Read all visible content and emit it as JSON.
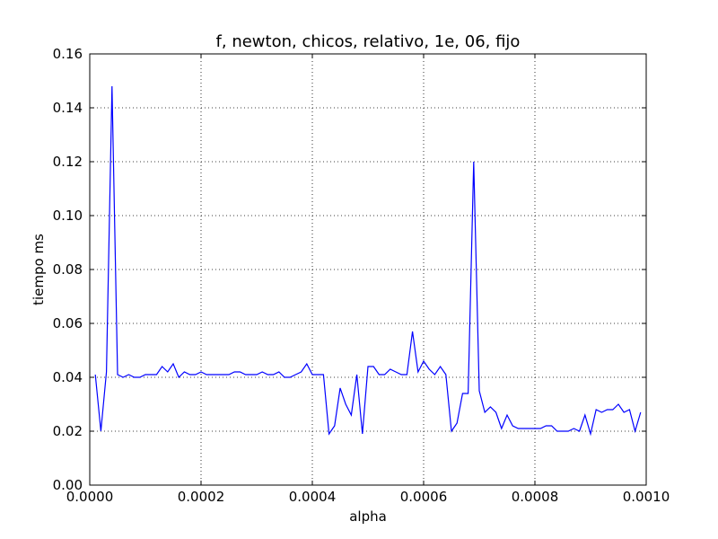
{
  "chart_data": {
    "type": "line",
    "title": "f, newton, chicos, relativo, 1e, 06, fijo",
    "xlabel": "alpha",
    "ylabel": "tiempo ms",
    "xlim": [
      0.0,
      0.001
    ],
    "ylim": [
      0.0,
      0.16
    ],
    "xticks": [
      "0.0000",
      "0.0002",
      "0.0004",
      "0.0006",
      "0.0008",
      "0.0010"
    ],
    "yticks": [
      "0.00",
      "0.02",
      "0.04",
      "0.06",
      "0.08",
      "0.10",
      "0.12",
      "0.14",
      "0.16"
    ],
    "grid": true,
    "line_color": "#0000ff",
    "series": [
      {
        "x": [
          1e-05,
          2e-05,
          3e-05,
          4e-05,
          5e-05,
          6e-05,
          7e-05,
          8e-05,
          9e-05,
          0.0001,
          0.00011,
          0.00012,
          0.00013,
          0.00014,
          0.00015,
          0.00016,
          0.00017,
          0.00018,
          0.00019,
          0.0002,
          0.00021,
          0.00022,
          0.00023,
          0.00024,
          0.00025,
          0.00026,
          0.00027,
          0.00028,
          0.00029,
          0.0003,
          0.00031,
          0.00032,
          0.00033,
          0.00034,
          0.00035,
          0.00036,
          0.00037,
          0.00038,
          0.00039,
          0.0004,
          0.00041,
          0.00042,
          0.00043,
          0.00044,
          0.00045,
          0.00046,
          0.00047,
          0.00048,
          0.00049,
          0.0005,
          0.00051,
          0.00052,
          0.00053,
          0.00054,
          0.00055,
          0.00056,
          0.00057,
          0.00058,
          0.00059,
          0.0006,
          0.00061,
          0.00062,
          0.00063,
          0.00064,
          0.00065,
          0.00066,
          0.00067,
          0.00068,
          0.00069,
          0.0007,
          0.00071,
          0.00072,
          0.00073,
          0.00074,
          0.00075,
          0.00076,
          0.00077,
          0.00078,
          0.00079,
          0.0008,
          0.00081,
          0.00082,
          0.00083,
          0.00084,
          0.00085,
          0.00086,
          0.00087,
          0.00088,
          0.00089,
          0.0009,
          0.00091,
          0.00092,
          0.00093,
          0.00094,
          0.00095,
          0.00096,
          0.00097,
          0.00098,
          0.00099
        ],
        "y": [
          0.041,
          0.02,
          0.042,
          0.148,
          0.041,
          0.04,
          0.041,
          0.04,
          0.04,
          0.041,
          0.041,
          0.041,
          0.044,
          0.042,
          0.045,
          0.04,
          0.042,
          0.041,
          0.041,
          0.042,
          0.041,
          0.041,
          0.041,
          0.041,
          0.041,
          0.042,
          0.042,
          0.041,
          0.041,
          0.041,
          0.042,
          0.041,
          0.041,
          0.042,
          0.04,
          0.04,
          0.041,
          0.042,
          0.045,
          0.041,
          0.041,
          0.041,
          0.019,
          0.022,
          0.036,
          0.03,
          0.026,
          0.041,
          0.019,
          0.044,
          0.044,
          0.041,
          0.041,
          0.043,
          0.042,
          0.041,
          0.041,
          0.057,
          0.042,
          0.046,
          0.043,
          0.041,
          0.044,
          0.041,
          0.02,
          0.023,
          0.034,
          0.034,
          0.12,
          0.035,
          0.027,
          0.029,
          0.027,
          0.021,
          0.026,
          0.022,
          0.021,
          0.021,
          0.021,
          0.021,
          0.021,
          0.022,
          0.022,
          0.02,
          0.02,
          0.02,
          0.021,
          0.02,
          0.026,
          0.019,
          0.028,
          0.027,
          0.028,
          0.028,
          0.03,
          0.027,
          0.028,
          0.02,
          0.027
        ]
      }
    ]
  }
}
